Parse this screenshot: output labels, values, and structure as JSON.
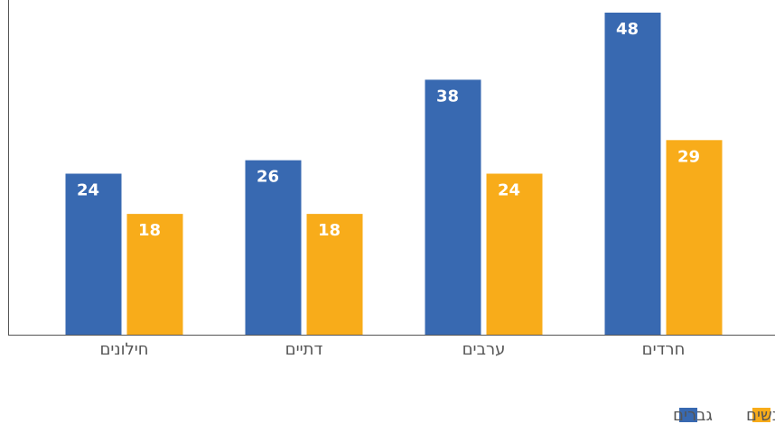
{
  "chart_data": {
    "type": "bar",
    "categories": [
      "חילונים",
      "דתיים",
      "ערבים",
      "חרדים"
    ],
    "series": [
      {
        "name": "גברים",
        "color": "#3869b1",
        "values": [
          24,
          26,
          38,
          48
        ]
      },
      {
        "name": "נשים",
        "color": "#f8ac1a",
        "values": [
          18,
          18,
          24,
          29
        ]
      }
    ],
    "ylim": [
      0,
      48
    ]
  }
}
